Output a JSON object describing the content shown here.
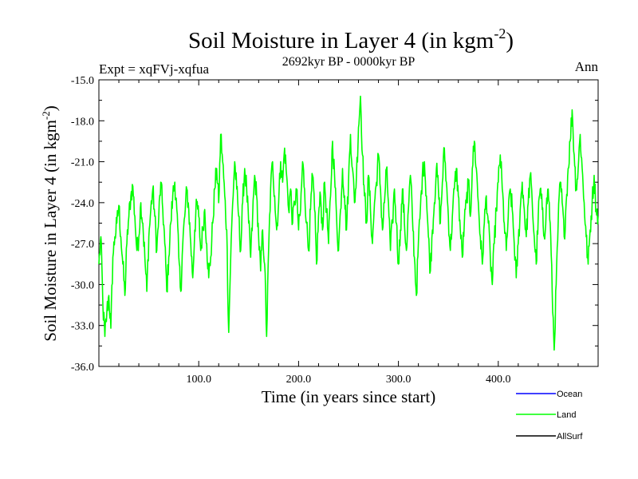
{
  "chart_data": {
    "type": "line",
    "title": "Soil Moisture in Layer 4 (in kgm",
    "title_sup": "-2",
    "title_suffix": ")",
    "subtitle": "2692kyr BP - 0000kyr BP",
    "expt_label": "Expt = xqFVj-xqfua",
    "season_label": "Ann",
    "xlabel": "Time (in years since start)",
    "ylabel": "Soil Moisture in Layer 4 (in kgm",
    "ylabel_sup": "-2",
    "ylabel_suffix": ")",
    "xlim": [
      0,
      500
    ],
    "ylim": [
      -36,
      -15
    ],
    "x_ticks": [
      100,
      200,
      300,
      400
    ],
    "x_tick_labels": [
      "100.0",
      "200.0",
      "300.0",
      "400.0"
    ],
    "y_ticks": [
      -15,
      -18,
      -21,
      -24,
      -27,
      -30,
      -33,
      -36
    ],
    "y_tick_labels": [
      "-15.0",
      "-18.0",
      "-21.0",
      "-24.0",
      "-27.0",
      "-30.0",
      "-33.0",
      "-36.0"
    ],
    "legend_position": "bottom-right",
    "series": [
      {
        "name": "Ocean",
        "color": "#0000ff",
        "values": []
      },
      {
        "name": "Land",
        "color": "#00ff00",
        "anchors": [
          [
            0,
            -28.5
          ],
          [
            2,
            -26.5
          ],
          [
            4,
            -31.5
          ],
          [
            6,
            -33.8
          ],
          [
            8,
            -32.0
          ],
          [
            10,
            -30.8
          ],
          [
            12,
            -33.2
          ],
          [
            14,
            -28.0
          ],
          [
            16,
            -26.5
          ],
          [
            18,
            -25.5
          ],
          [
            20,
            -24.2
          ],
          [
            22,
            -26.5
          ],
          [
            24,
            -28.5
          ],
          [
            26,
            -30.8
          ],
          [
            28,
            -27.0
          ],
          [
            30,
            -25.0
          ],
          [
            32,
            -23.5
          ],
          [
            34,
            -22.8
          ],
          [
            36,
            -25.0
          ],
          [
            38,
            -27.5
          ],
          [
            40,
            -26.5
          ],
          [
            42,
            -24.0
          ],
          [
            44,
            -25.5
          ],
          [
            46,
            -28.0
          ],
          [
            48,
            -30.5
          ],
          [
            50,
            -26.5
          ],
          [
            52,
            -24.5
          ],
          [
            54,
            -23.0
          ],
          [
            56,
            -25.0
          ],
          [
            58,
            -27.5
          ],
          [
            60,
            -25.0
          ],
          [
            62,
            -22.5
          ],
          [
            64,
            -24.5
          ],
          [
            66,
            -27.0
          ],
          [
            68,
            -30.5
          ],
          [
            70,
            -28.0
          ],
          [
            72,
            -25.5
          ],
          [
            74,
            -23.5
          ],
          [
            76,
            -22.5
          ],
          [
            78,
            -24.5
          ],
          [
            80,
            -28.0
          ],
          [
            82,
            -30.5
          ],
          [
            84,
            -27.0
          ],
          [
            86,
            -25.0
          ],
          [
            88,
            -23.0
          ],
          [
            90,
            -24.5
          ],
          [
            92,
            -27.0
          ],
          [
            94,
            -29.5
          ],
          [
            96,
            -26.0
          ],
          [
            98,
            -24.0
          ],
          [
            100,
            -25.0
          ],
          [
            102,
            -27.5
          ],
          [
            104,
            -26.0
          ],
          [
            106,
            -24.5
          ],
          [
            108,
            -27.0
          ],
          [
            110,
            -29.5
          ],
          [
            112,
            -28.0
          ],
          [
            114,
            -25.5
          ],
          [
            116,
            -23.0
          ],
          [
            118,
            -21.5
          ],
          [
            120,
            -24.0
          ],
          [
            122,
            -19.0
          ],
          [
            124,
            -21.0
          ],
          [
            126,
            -23.5
          ],
          [
            128,
            -26.0
          ],
          [
            130,
            -33.5
          ],
          [
            132,
            -28.0
          ],
          [
            134,
            -24.0
          ],
          [
            136,
            -21.0
          ],
          [
            138,
            -23.0
          ],
          [
            140,
            -25.0
          ],
          [
            142,
            -27.5
          ],
          [
            144,
            -24.0
          ],
          [
            146,
            -21.5
          ],
          [
            148,
            -23.0
          ],
          [
            150,
            -25.5
          ],
          [
            152,
            -28.0
          ],
          [
            154,
            -25.0
          ],
          [
            156,
            -22.0
          ],
          [
            158,
            -23.5
          ],
          [
            160,
            -26.5
          ],
          [
            162,
            -29.0
          ],
          [
            164,
            -26.0
          ],
          [
            166,
            -28.5
          ],
          [
            168,
            -33.8
          ],
          [
            170,
            -27.5
          ],
          [
            172,
            -23.0
          ],
          [
            174,
            -21.0
          ],
          [
            176,
            -23.5
          ],
          [
            178,
            -26.0
          ],
          [
            180,
            -24.0
          ],
          [
            182,
            -21.0
          ],
          [
            184,
            -22.5
          ],
          [
            186,
            -20.0
          ],
          [
            188,
            -22.0
          ],
          [
            190,
            -24.5
          ],
          [
            192,
            -23.0
          ],
          [
            194,
            -25.5
          ],
          [
            196,
            -24.0
          ],
          [
            198,
            -23.0
          ],
          [
            200,
            -26.0
          ],
          [
            202,
            -24.5
          ],
          [
            204,
            -21.0
          ],
          [
            206,
            -23.0
          ],
          [
            208,
            -25.5
          ],
          [
            210,
            -27.5
          ],
          [
            212,
            -24.5
          ],
          [
            214,
            -22.0
          ],
          [
            216,
            -24.5
          ],
          [
            218,
            -28.5
          ],
          [
            220,
            -25.0
          ],
          [
            222,
            -23.5
          ],
          [
            224,
            -26.0
          ],
          [
            226,
            -22.5
          ],
          [
            228,
            -24.5
          ],
          [
            230,
            -27.0
          ],
          [
            232,
            -23.5
          ],
          [
            234,
            -19.5
          ],
          [
            236,
            -22.0
          ],
          [
            238,
            -25.0
          ],
          [
            240,
            -27.5
          ],
          [
            242,
            -24.5
          ],
          [
            244,
            -21.5
          ],
          [
            246,
            -23.5
          ],
          [
            248,
            -26.0
          ],
          [
            250,
            -22.5
          ],
          [
            252,
            -19.0
          ],
          [
            254,
            -21.5
          ],
          [
            256,
            -24.0
          ],
          [
            258,
            -22.0
          ],
          [
            260,
            -18.5
          ],
          [
            262,
            -16.2
          ],
          [
            264,
            -20.5
          ],
          [
            266,
            -23.5
          ],
          [
            268,
            -25.5
          ],
          [
            270,
            -22.0
          ],
          [
            272,
            -24.5
          ],
          [
            274,
            -27.0
          ],
          [
            276,
            -24.0
          ],
          [
            278,
            -22.5
          ],
          [
            280,
            -20.5
          ],
          [
            282,
            -23.0
          ],
          [
            284,
            -26.0
          ],
          [
            286,
            -24.0
          ],
          [
            288,
            -21.5
          ],
          [
            290,
            -24.0
          ],
          [
            292,
            -27.5
          ],
          [
            294,
            -25.5
          ],
          [
            296,
            -23.0
          ],
          [
            298,
            -25.5
          ],
          [
            300,
            -28.5
          ],
          [
            302,
            -26.0
          ],
          [
            304,
            -23.0
          ],
          [
            306,
            -25.5
          ],
          [
            308,
            -27.5
          ],
          [
            310,
            -24.5
          ],
          [
            312,
            -22.0
          ],
          [
            314,
            -25.0
          ],
          [
            316,
            -28.0
          ],
          [
            318,
            -30.8
          ],
          [
            320,
            -27.0
          ],
          [
            322,
            -24.5
          ],
          [
            324,
            -22.0
          ],
          [
            326,
            -21.0
          ],
          [
            328,
            -23.5
          ],
          [
            330,
            -26.5
          ],
          [
            332,
            -29.0
          ],
          [
            334,
            -26.0
          ],
          [
            336,
            -24.0
          ],
          [
            338,
            -21.5
          ],
          [
            340,
            -23.0
          ],
          [
            342,
            -25.5
          ],
          [
            344,
            -22.5
          ],
          [
            346,
            -20.0
          ],
          [
            348,
            -22.5
          ],
          [
            350,
            -25.0
          ],
          [
            352,
            -27.5
          ],
          [
            354,
            -25.0
          ],
          [
            356,
            -23.0
          ],
          [
            358,
            -21.5
          ],
          [
            360,
            -23.5
          ],
          [
            362,
            -26.0
          ],
          [
            364,
            -28.0
          ],
          [
            366,
            -25.5
          ],
          [
            368,
            -24.0
          ],
          [
            370,
            -22.5
          ],
          [
            372,
            -25.0
          ],
          [
            374,
            -21.5
          ],
          [
            376,
            -19.5
          ],
          [
            378,
            -21.5
          ],
          [
            380,
            -24.0
          ],
          [
            382,
            -26.5
          ],
          [
            384,
            -28.5
          ],
          [
            386,
            -25.5
          ],
          [
            388,
            -23.5
          ],
          [
            390,
            -25.5
          ],
          [
            392,
            -28.0
          ],
          [
            394,
            -30.0
          ],
          [
            396,
            -27.0
          ],
          [
            398,
            -24.5
          ],
          [
            400,
            -22.5
          ],
          [
            402,
            -20.5
          ],
          [
            404,
            -23.0
          ],
          [
            406,
            -25.5
          ],
          [
            408,
            -27.5
          ],
          [
            410,
            -25.0
          ],
          [
            412,
            -23.0
          ],
          [
            414,
            -24.5
          ],
          [
            416,
            -27.0
          ],
          [
            418,
            -29.5
          ],
          [
            420,
            -27.0
          ],
          [
            422,
            -24.5
          ],
          [
            424,
            -22.5
          ],
          [
            426,
            -24.5
          ],
          [
            428,
            -26.5
          ],
          [
            430,
            -24.0
          ],
          [
            432,
            -22.0
          ],
          [
            434,
            -24.0
          ],
          [
            436,
            -26.5
          ],
          [
            438,
            -28.5
          ],
          [
            440,
            -25.0
          ],
          [
            442,
            -23.0
          ],
          [
            444,
            -24.5
          ],
          [
            446,
            -26.5
          ],
          [
            448,
            -24.5
          ],
          [
            450,
            -23.0
          ],
          [
            452,
            -25.5
          ],
          [
            454,
            -30.5
          ],
          [
            456,
            -34.8
          ],
          [
            458,
            -30.0
          ],
          [
            460,
            -25.5
          ],
          [
            462,
            -22.5
          ],
          [
            464,
            -24.0
          ],
          [
            466,
            -26.5
          ],
          [
            468,
            -24.0
          ],
          [
            470,
            -21.5
          ],
          [
            472,
            -19.5
          ],
          [
            474,
            -17.2
          ],
          [
            476,
            -20.5
          ],
          [
            478,
            -23.0
          ],
          [
            480,
            -21.5
          ],
          [
            482,
            -19.0
          ],
          [
            484,
            -21.5
          ],
          [
            486,
            -24.0
          ],
          [
            488,
            -26.5
          ],
          [
            490,
            -28.5
          ],
          [
            492,
            -26.0
          ],
          [
            494,
            -24.0
          ],
          [
            496,
            -22.0
          ],
          [
            498,
            -24.5
          ],
          [
            500,
            -25.0
          ]
        ]
      },
      {
        "name": "AllSurf",
        "color": "#000000",
        "values": []
      }
    ]
  }
}
